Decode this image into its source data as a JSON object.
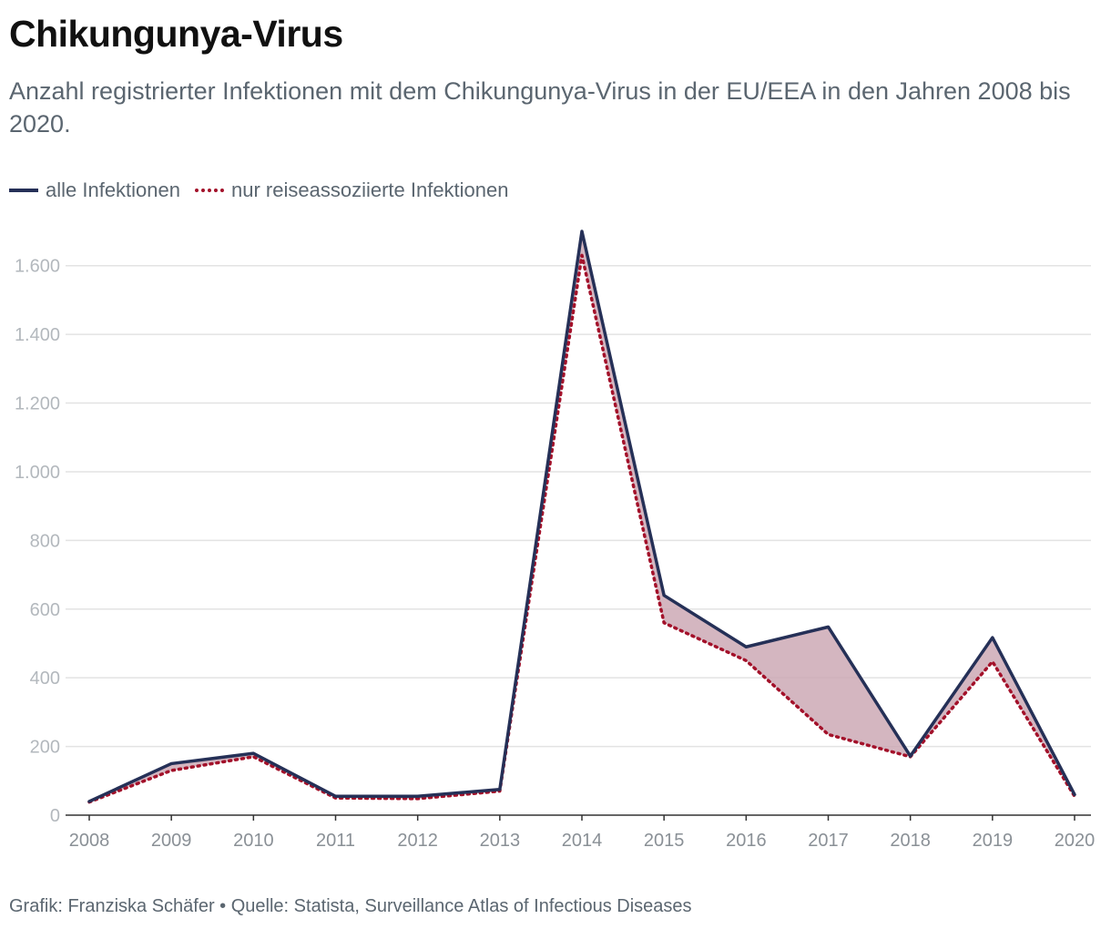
{
  "header": {
    "title": "Chikungunya-Virus",
    "subtitle": "Anzahl registrierter Infektionen mit dem Chikungunya-Virus in der EU/EEA in den Jahren 2008 bis 2020."
  },
  "legend": {
    "items": [
      {
        "label": "alle Infektionen",
        "color": "#253057",
        "style": "solid"
      },
      {
        "label": "nur reiseassoziierte Infektionen",
        "color": "#a3112a",
        "style": "dotted"
      }
    ]
  },
  "footer": {
    "credit": "Grafik: Franziska Schäfer • Quelle: Statista, Surveillance Atlas of Infectious Diseases"
  },
  "chart_data": {
    "type": "line",
    "categories": [
      "2008",
      "2009",
      "2010",
      "2011",
      "2012",
      "2013",
      "2014",
      "2015",
      "2016",
      "2017",
      "2018",
      "2019",
      "2020"
    ],
    "series": [
      {
        "name": "alle Infektionen",
        "color": "#253057",
        "style": "solid",
        "values": [
          40,
          150,
          180,
          55,
          55,
          75,
          1700,
          640,
          490,
          548,
          172,
          517,
          60
        ]
      },
      {
        "name": "nur reiseassoziierte Infektionen",
        "color": "#a3112a",
        "style": "dotted",
        "values": [
          38,
          130,
          170,
          50,
          48,
          70,
          1630,
          560,
          450,
          235,
          170,
          447,
          55
        ]
      }
    ],
    "difference_fill_color": "#c9a4b0",
    "ylim": [
      0,
      1700
    ],
    "yticks": [
      0,
      200,
      400,
      600,
      800,
      1000,
      1200,
      1400,
      1600
    ],
    "ytick_labels": [
      "0",
      "200",
      "400",
      "600",
      "800",
      "1.000",
      "1.200",
      "1.400",
      "1.600"
    ],
    "grid": true,
    "legend_position": "top-left"
  }
}
